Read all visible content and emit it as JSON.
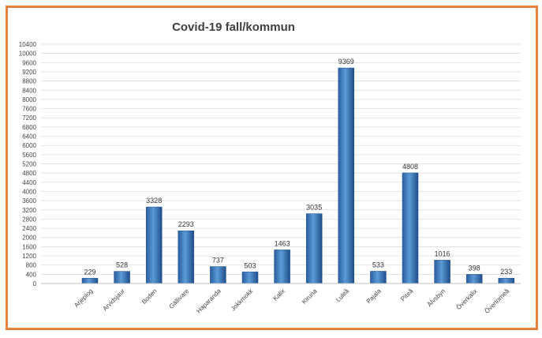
{
  "chart_data": {
    "type": "bar",
    "title": "Covid-19 fall/kommun",
    "xlabel": "",
    "ylabel": "",
    "categories": [
      "Arjeplog",
      "Arvidsjaur",
      "Boden",
      "Gällivare",
      "Haparanda",
      "Jokkmokk",
      "Kalix",
      "Kiruna",
      "Luleå",
      "Pajala",
      "Piteå",
      "Älvsbyn",
      "Överkalix",
      "Övertorneå"
    ],
    "values": [
      229,
      528,
      3328,
      2293,
      737,
      503,
      1463,
      3035,
      9369,
      533,
      4808,
      1016,
      398,
      233
    ],
    "ylim": [
      0,
      10400
    ],
    "ytick_step": 400,
    "grid": true,
    "legend": "none",
    "colors": {
      "bar_top": "#5b9bd5",
      "bar_bottom": "#1f4e8c",
      "border": "#e8803a",
      "grid": "#d9d9d9"
    }
  }
}
